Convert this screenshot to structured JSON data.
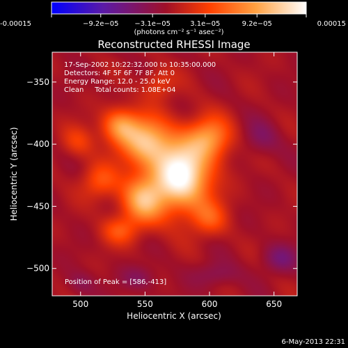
{
  "chart_data": {
    "type": "heatmap",
    "title": "Reconstructed RHESSI Image",
    "xlabel": "Heliocentric X (arcsec)",
    "ylabel": "Heliocentric Y (arcsec)",
    "xlim": [
      478,
      668
    ],
    "ylim": [
      -522,
      -326
    ],
    "x_ticks": [
      500,
      550,
      600,
      650
    ],
    "y_ticks": [
      -350,
      -400,
      -450,
      -500
    ],
    "colorbar": {
      "range": [
        -0.00015,
        0.00015
      ],
      "tick_values": [
        -0.00015,
        -9.2e-05,
        -3.1e-05,
        3.1e-05,
        9.2e-05,
        0.00015
      ],
      "tick_labels": [
        "-0.00015",
        "−9.2e−05",
        "−3.1e−05",
        "3.1e−05",
        "9.2e−05",
        "0.00015"
      ],
      "unit_label": "(photons cm⁻² s⁻¹ asec⁻²)",
      "colors": [
        "#0000ff",
        "#5a1aa8",
        "#a01028",
        "#ff4000",
        "#ffa040",
        "#ffffff"
      ]
    },
    "annotations": [
      "17-Sep-2002 10:22:32.000 to 10:35:00.000",
      "Detectors: 4F 5F 6F 7F 8F, Att 0",
      "Energy Range: 12.0 - 25.0 keV",
      "Clean     Total counts: 1.08E+04"
    ],
    "peak_label": "Position of Peak = [586,-413]",
    "peak": [
      586,
      -413
    ],
    "sources": [
      {
        "x": 578,
        "y": -425,
        "sx": 16,
        "sy": 20,
        "amp": 0.000165
      },
      {
        "x": 550,
        "y": -398,
        "sx": 14,
        "sy": 14,
        "amp": 0.00011
      },
      {
        "x": 530,
        "y": -385,
        "sx": 10,
        "sy": 10,
        "amp": 8e-05
      },
      {
        "x": 600,
        "y": -395,
        "sx": 12,
        "sy": 12,
        "amp": 8.5e-05
      },
      {
        "x": 548,
        "y": -445,
        "sx": 12,
        "sy": 14,
        "amp": 0.0001
      },
      {
        "x": 515,
        "y": -430,
        "sx": 10,
        "sy": 10,
        "amp": 5.5e-05
      },
      {
        "x": 600,
        "y": -460,
        "sx": 10,
        "sy": 10,
        "amp": 5e-05
      },
      {
        "x": 530,
        "y": -470,
        "sx": 10,
        "sy": 8,
        "amp": 5e-05
      },
      {
        "x": 560,
        "y": -352,
        "sx": 9,
        "sy": 9,
        "amp": 4e-05
      },
      {
        "x": 498,
        "y": -398,
        "sx": 9,
        "sy": 9,
        "amp": 4e-05
      },
      {
        "x": 640,
        "y": -395,
        "sx": 10,
        "sy": 10,
        "amp": -3e-05
      },
      {
        "x": 655,
        "y": -492,
        "sx": 10,
        "sy": 8,
        "amp": -4e-05
      },
      {
        "x": 605,
        "y": -505,
        "sx": 12,
        "sy": 7,
        "amp": -3e-05
      },
      {
        "x": 545,
        "y": -508,
        "sx": 10,
        "sy": 7,
        "amp": -3e-05
      },
      {
        "x": 500,
        "y": -512,
        "sx": 8,
        "sy": 7,
        "amp": -2.5e-05
      }
    ]
  },
  "footer_date": "6-May-2013 22:31"
}
